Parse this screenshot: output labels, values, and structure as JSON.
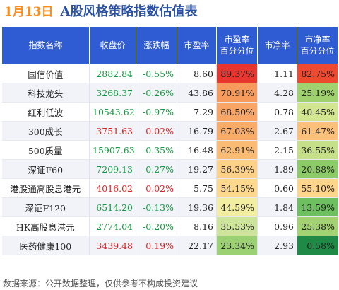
{
  "header": {
    "date": "1月13日",
    "title": "A股风格策略指数估值表"
  },
  "columns": [
    "指数名称",
    "收盘价",
    "涨跌幅",
    "市盈率",
    "市盈率\n百分分位",
    "市净率",
    "市净率\n百分分位"
  ],
  "colors": {
    "up": "#e02020",
    "down": "#139c3f",
    "header": "#2f5bd3"
  },
  "rows": [
    {
      "name": "国信价值",
      "close": "2882.84",
      "chg": "-0.55%",
      "pe": "8.60",
      "pe_pct": "89.37%",
      "pb": "1.11",
      "pb_pct": "82.75%",
      "dir": "down",
      "pe_color": "#e8352e",
      "pb_color": "#ee4a30"
    },
    {
      "name": "科技龙头",
      "close": "3268.37",
      "chg": "-0.26%",
      "pe": "43.86",
      "pe_pct": "70.91%",
      "pb": "4.28",
      "pb_pct": "25.19%",
      "dir": "down",
      "pe_color": "#f79b5d",
      "pb_color": "#9fd16f"
    },
    {
      "name": "红利低波",
      "close": "10543.62",
      "chg": "-0.97%",
      "pe": "7.29",
      "pe_pct": "68.50%",
      "pb": "0.78",
      "pb_pct": "40.45%",
      "dir": "down",
      "pe_color": "#f8a565",
      "pb_color": "#d2e690"
    },
    {
      "name": "300成长",
      "close": "3751.63",
      "chg": "0.02%",
      "pe": "16.79",
      "pe_pct": "67.03%",
      "pb": "2.67",
      "pb_pct": "61.47%",
      "dir": "up",
      "pe_color": "#f9ab68",
      "pb_color": "#fbc079"
    },
    {
      "name": "500质量",
      "close": "15907.63",
      "chg": "-0.35%",
      "pe": "16.48",
      "pe_pct": "62.91%",
      "pb": "2.15",
      "pb_pct": "36.55%",
      "dir": "down",
      "pe_color": "#fabb74",
      "pb_color": "#c6e08a"
    },
    {
      "name": "深证F60",
      "close": "7209.13",
      "chg": "-0.27%",
      "pe": "19.27",
      "pe_pct": "56.39%",
      "pb": "1.89",
      "pb_pct": "20.88%",
      "dir": "down",
      "pe_color": "#fdd187",
      "pb_color": "#8ccb68"
    },
    {
      "name": "港股通高股息港元",
      "close": "4016.02",
      "chg": "0.02%",
      "pe": "5.75",
      "pe_pct": "54.15%",
      "pb": "0.60",
      "pb_pct": "55.10%",
      "dir": "up",
      "pe_color": "#fed98d",
      "pb_color": "#fed68b"
    },
    {
      "name": "深证F120",
      "close": "6514.20",
      "chg": "-0.13%",
      "pe": "19.36",
      "pe_pct": "44.59%",
      "pb": "1.84",
      "pb_pct": "13.59%",
      "dir": "down",
      "pe_color": "#f1eea1",
      "pb_color": "#6ebf60"
    },
    {
      "name": "HK高股息港元",
      "close": "2774.04",
      "chg": "-0.20%",
      "pe": "8.16",
      "pe_pct": "35.53%",
      "pb": "0.96",
      "pb_pct": "25.38%",
      "dir": "down",
      "pe_color": "#cde59a",
      "pb_color": "#a2d272"
    },
    {
      "name": "医药健康100",
      "close": "3439.48",
      "chg": "0.19%",
      "pe": "22.17",
      "pe_pct": "23.34%",
      "pb": "2.93",
      "pb_pct": "0.58%",
      "dir": "up",
      "pe_color": "#9bd172",
      "pb_color": "#1f8a46"
    }
  ],
  "footer": "数据来源：公开数据整理，仅供参考不构成投资建议"
}
